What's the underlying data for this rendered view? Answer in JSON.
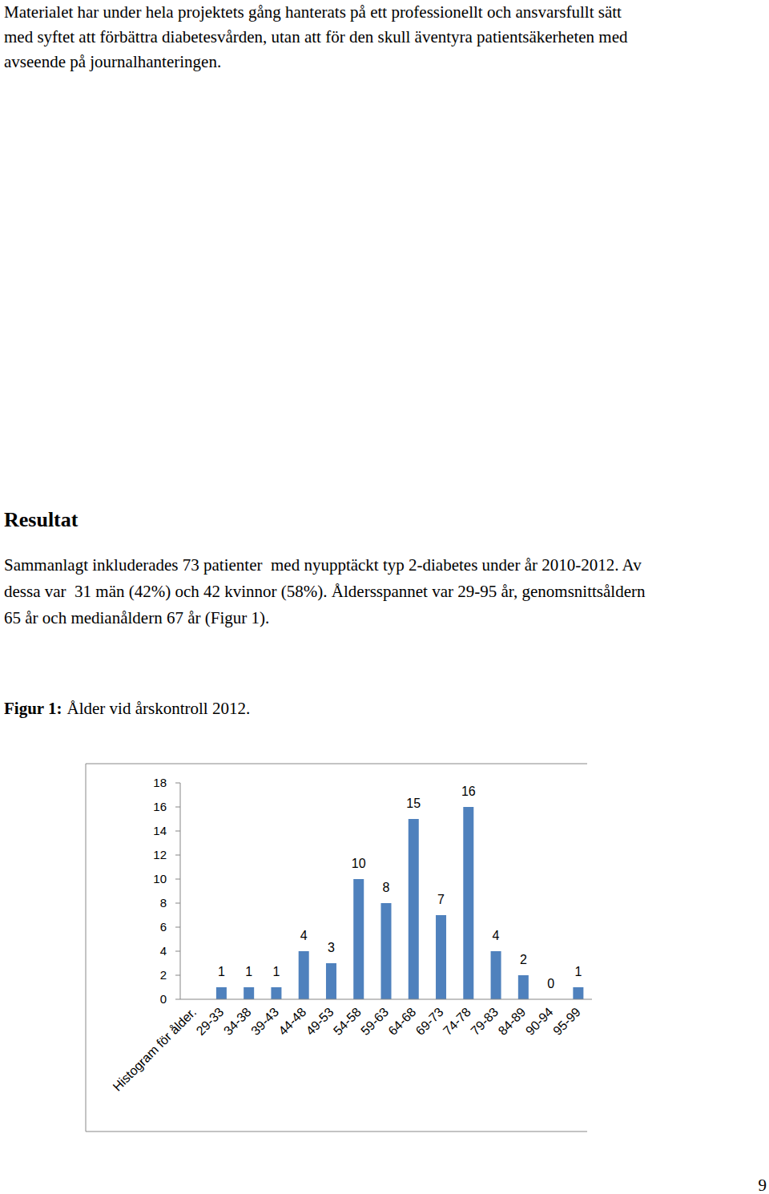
{
  "top_paragraph": {
    "lines": [
      "Materialet har under hela projektets gång hanterats på ett professionellt och ansvarsfullt sätt",
      "med syftet att förbättra diabetesvården, utan att för den skull äventyra patientsäkerheten med",
      "avseende på journalhanteringen."
    ]
  },
  "heading": "Resultat",
  "result_paragraph": {
    "lines": [
      "Sammanlagt inkluderades 73 patienter  med nyupptäckt typ 2-diabetes under år 2010-2012. Av",
      "dessa var  31 män (42%) och 42 kvinnor (58%). Åldersspannet var 29-95 år, genomsnittsåldern",
      "65 år och medianåldern 67 år (Figur 1)."
    ]
  },
  "figure_caption": {
    "label": "Figur 1:",
    "text": "Ålder vid årskontroll 2012."
  },
  "chart_data": {
    "type": "bar",
    "categories": [
      "Histogram för ålder.",
      "29-33",
      "34-38",
      "39-43",
      "44-48",
      "49-53",
      "54-58",
      "59-63",
      "64-68",
      "69-73",
      "74-78",
      "79-83",
      "84-89",
      "90-94",
      "95-99"
    ],
    "values": [
      null,
      1,
      1,
      1,
      4,
      3,
      10,
      8,
      15,
      7,
      16,
      4,
      2,
      0,
      1
    ],
    "color": "#4f81bd",
    "ylim": [
      0,
      18
    ],
    "yticks": [
      0,
      2,
      4,
      6,
      8,
      10,
      12,
      14,
      16,
      18
    ],
    "grid": false,
    "data_labels": true
  },
  "page_number": 9
}
